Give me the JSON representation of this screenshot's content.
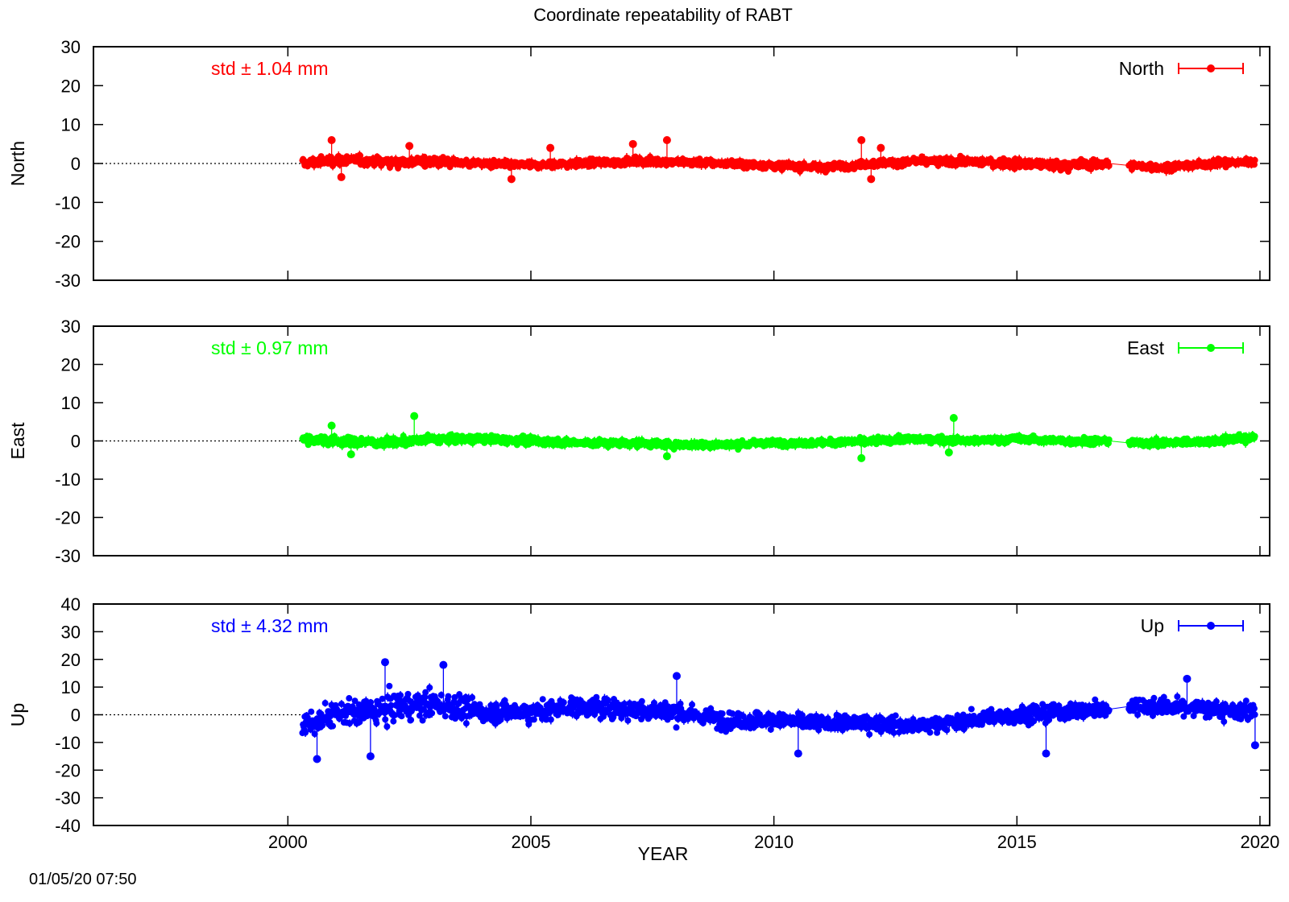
{
  "title": "Coordinate repeatability of RABT",
  "xlabel": "YEAR",
  "timestamp": "01/05/20 07:50",
  "x_ticks": [
    "2000",
    "2005",
    "2010",
    "2015",
    "2020"
  ],
  "chart_data": [
    {
      "type": "scatter",
      "name": "North",
      "ylabel": "North",
      "std_label": "std ± 1.04 mm",
      "legend_label": "North",
      "legend_position": "top-right",
      "color": "#ff0000",
      "xlim": [
        1996,
        2020.2
      ],
      "ylim": [
        -30,
        30
      ],
      "yticks": [
        30,
        20,
        10,
        0,
        -10,
        -20,
        -30
      ],
      "zero_line": true,
      "series_envelope": {
        "x": [
          2000.3,
          2001,
          2002,
          2003,
          2004,
          2005,
          2006,
          2007,
          2008,
          2009,
          2010,
          2011,
          2012,
          2013,
          2014,
          2015,
          2016,
          2016.9,
          2017.3,
          2018,
          2019,
          2019.9
        ],
        "center": [
          0,
          1,
          0.5,
          0.5,
          0,
          -0.5,
          0,
          0.5,
          0.5,
          0,
          -0.5,
          -1,
          0,
          0.5,
          0.5,
          0,
          -0.5,
          0,
          -0.5,
          -1,
          0,
          0.5
        ],
        "spread": [
          2,
          2,
          2,
          2,
          1.5,
          1.5,
          1.5,
          1.5,
          1.5,
          1.5,
          1.5,
          1.5,
          1.5,
          1.5,
          1.5,
          2,
          2,
          2,
          1.5,
          1.5,
          1.5,
          1.5
        ]
      },
      "outliers": [
        [
          2000.9,
          6
        ],
        [
          2002.5,
          4.5
        ],
        [
          2005.4,
          4
        ],
        [
          2007.1,
          5
        ],
        [
          2007.8,
          6
        ],
        [
          2011.8,
          6
        ],
        [
          2012.2,
          4
        ],
        [
          2001.1,
          -3.5
        ],
        [
          2004.6,
          -4
        ],
        [
          2012,
          -4
        ]
      ],
      "gaps": [
        [
          2016.9,
          2017.3
        ]
      ]
    },
    {
      "type": "scatter",
      "name": "East",
      "ylabel": "East",
      "std_label": "std ± 0.97 mm",
      "legend_label": "East",
      "legend_position": "top-right",
      "color": "#00ff00",
      "xlim": [
        1996,
        2020.2
      ],
      "ylim": [
        -30,
        30
      ],
      "yticks": [
        30,
        20,
        10,
        0,
        -10,
        -20,
        -30
      ],
      "zero_line": true,
      "series_envelope": {
        "x": [
          2000.3,
          2001,
          2002,
          2003,
          2004,
          2005,
          2006,
          2007,
          2008,
          2009,
          2010,
          2011,
          2012,
          2013,
          2014,
          2015,
          2016,
          2016.9,
          2017.3,
          2018,
          2019,
          2019.9
        ],
        "center": [
          0.5,
          0,
          -0.5,
          0.5,
          0.5,
          0,
          -0.5,
          -0.5,
          -1,
          -1,
          -0.5,
          -0.5,
          0,
          0.5,
          0,
          0.5,
          0,
          0,
          -0.5,
          -0.5,
          0,
          1
        ],
        "spread": [
          1.8,
          1.8,
          1.8,
          1.8,
          1.5,
          1.5,
          1.5,
          1.5,
          1.5,
          1.5,
          1.3,
          1.3,
          1.3,
          1.3,
          1.3,
          1.5,
          1.5,
          1.5,
          1.5,
          1.5,
          1.5,
          1.5
        ]
      },
      "outliers": [
        [
          2002.6,
          6.5
        ],
        [
          2013.7,
          6
        ],
        [
          2000.9,
          4
        ],
        [
          2011.8,
          -4.5
        ],
        [
          2001.3,
          -3.5
        ],
        [
          2007.8,
          -4
        ],
        [
          2013.6,
          -3
        ]
      ],
      "gaps": [
        [
          2016.9,
          2017.3
        ]
      ]
    },
    {
      "type": "scatter",
      "name": "Up",
      "ylabel": "Up",
      "std_label": "std ± 4.32 mm",
      "legend_label": "Up",
      "legend_position": "top-right",
      "color": "#0000ff",
      "xlim": [
        1996,
        2020.2
      ],
      "ylim": [
        -40,
        40
      ],
      "yticks": [
        40,
        30,
        20,
        10,
        0,
        -10,
        -20,
        -30,
        -40
      ],
      "zero_line": true,
      "series_envelope": {
        "x": [
          2000.3,
          2001,
          2002,
          2003,
          2004,
          2005,
          2006,
          2007,
          2008,
          2009,
          2010,
          2011,
          2012,
          2013,
          2014,
          2015,
          2016,
          2016.9,
          2017.3,
          2018,
          2019,
          2019.9
        ],
        "center": [
          -4,
          0,
          2,
          4,
          1,
          1,
          3,
          2,
          1,
          -2,
          -2,
          -3,
          -3,
          -4,
          -2,
          0,
          1,
          2,
          3,
          3,
          2,
          1
        ],
        "spread": [
          7,
          7,
          8,
          8,
          6,
          6,
          6,
          6,
          6,
          5,
          5,
          4.5,
          4.5,
          4.5,
          4.5,
          5,
          5,
          5,
          5,
          5,
          5,
          5
        ]
      },
      "outliers": [
        [
          2002,
          19
        ],
        [
          2003.2,
          18
        ],
        [
          2008,
          14
        ],
        [
          2018.5,
          13
        ],
        [
          2000.6,
          -16
        ],
        [
          2010.5,
          -14
        ],
        [
          2015.6,
          -14
        ],
        [
          2019.9,
          -11
        ],
        [
          2001.7,
          -15
        ]
      ],
      "gaps": [
        [
          2016.9,
          2017.3
        ]
      ]
    }
  ]
}
